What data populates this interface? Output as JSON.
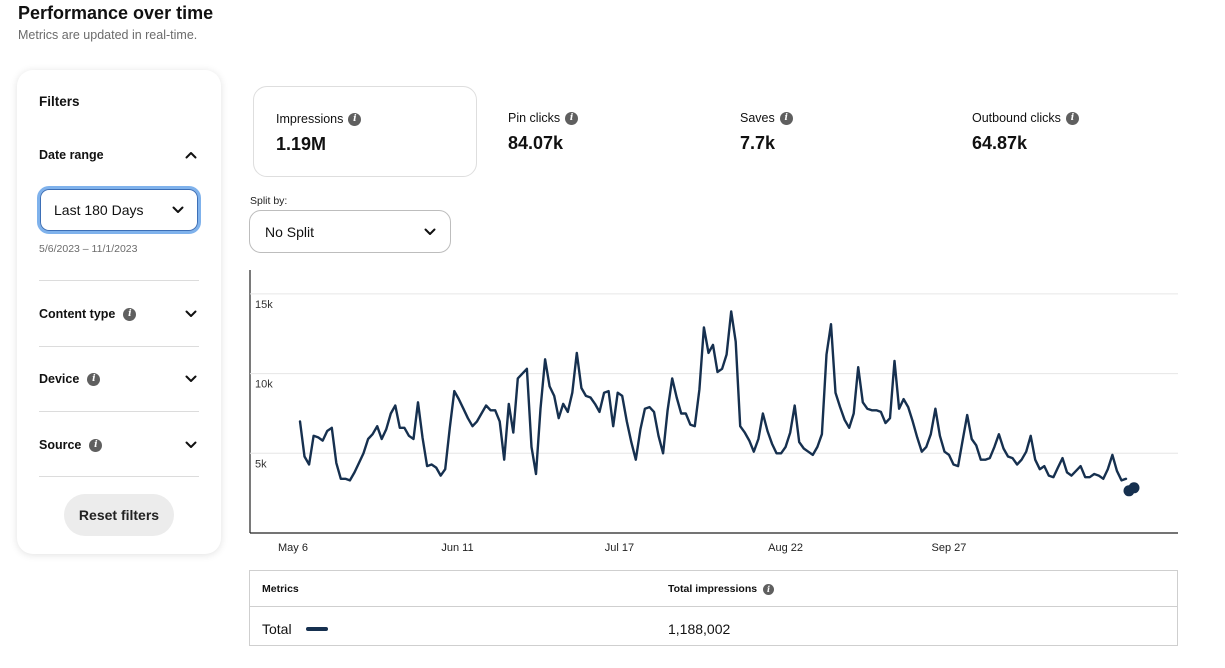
{
  "header": {
    "title": "Performance over time",
    "subtitle": "Metrics are updated in real-time."
  },
  "filters": {
    "title": "Filters",
    "date_range": {
      "label": "Date range",
      "selected": "Last 180 Days",
      "range_hint": "5/6/2023 – 11/1/2023"
    },
    "content_type": {
      "label": "Content type"
    },
    "device": {
      "label": "Device"
    },
    "source": {
      "label": "Source"
    },
    "reset_label": "Reset filters"
  },
  "metrics": [
    {
      "label": "Impressions",
      "value": "1.19M"
    },
    {
      "label": "Pin clicks",
      "value": "84.07k"
    },
    {
      "label": "Saves",
      "value": "7.7k"
    },
    {
      "label": "Outbound clicks",
      "value": "64.87k"
    }
  ],
  "split": {
    "label": "Split by:",
    "selected": "No Split"
  },
  "chart_data": {
    "type": "line",
    "color": "#16304f",
    "y_ticks": [
      "5k",
      "10k",
      "15k"
    ],
    "x_ticks": [
      "May 6",
      "Jun 11",
      "Jul 17",
      "Aug 22",
      "Sep 27"
    ],
    "ylim": [
      0,
      16500
    ],
    "series": [
      {
        "values": [
          7000,
          4800,
          4300,
          6100,
          6000,
          5800,
          6400,
          6600,
          4400,
          3400,
          3400,
          3300,
          3800,
          4400,
          5000,
          5900,
          6200,
          6700,
          5900,
          6500,
          7500,
          8000,
          6600,
          6600,
          6100,
          5900,
          8200,
          6000,
          4200,
          4300,
          4100,
          3600,
          4000,
          6600,
          8900,
          8400,
          7800,
          7200,
          6700,
          7000,
          7500,
          8000,
          7700,
          7700,
          7000,
          4600,
          8100,
          6300,
          9700,
          10000,
          10300,
          5400,
          3700,
          7800,
          10900,
          9200,
          8600,
          7200,
          8100,
          7600,
          8800,
          11300,
          9100,
          8600,
          8500,
          8100,
          7600,
          8800,
          8900,
          6700,
          8800,
          8600,
          7000,
          5700,
          4600,
          6500,
          7800,
          7900,
          7600,
          6100,
          5000,
          7700,
          9700,
          8500,
          7500,
          7500,
          6800,
          6700,
          9000,
          12900,
          11300,
          11800,
          10100,
          10300,
          11200,
          13900,
          12000,
          6700,
          6300,
          5800,
          5100,
          5900,
          7500,
          6400,
          5600,
          5000,
          5000,
          5400,
          6300,
          8000,
          5700,
          5300,
          5100,
          4900,
          5400,
          6200,
          11200,
          13100,
          8800,
          7900,
          7100,
          6600,
          7500,
          10400,
          8200,
          7800,
          7700,
          7700,
          7600,
          6900,
          7200,
          10800,
          7800,
          8400,
          7900,
          7000,
          6000,
          5100,
          5400,
          6200,
          7800,
          6100,
          5100,
          4900,
          4300,
          4200,
          5800,
          7400,
          5900,
          5500,
          4600,
          4600,
          4700,
          5400,
          6200,
          5300,
          4800,
          4700,
          4300,
          4600,
          5100,
          6100,
          4600,
          4000,
          4200,
          3600,
          3500,
          4100,
          4700,
          3800,
          3600,
          3900,
          4200,
          3500,
          3500,
          3700,
          3600,
          3400,
          4000,
          4900,
          3900,
          3300,
          3400
        ]
      }
    ]
  },
  "table": {
    "col_metrics": "Metrics",
    "col_total": "Total impressions",
    "row_label": "Total",
    "row_value": "1,188,002"
  }
}
